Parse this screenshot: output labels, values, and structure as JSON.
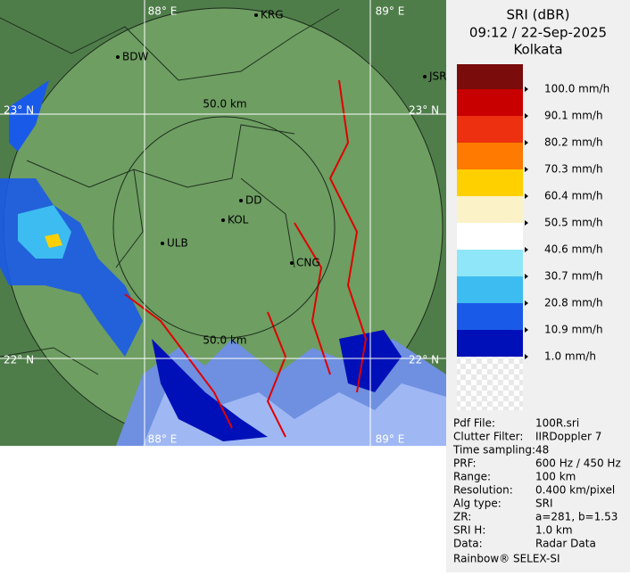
{
  "header": {
    "title": "SRI (dBR)",
    "time": "09:12 / 22-Sep-2025",
    "station": "Kolkata"
  },
  "legend": [
    {
      "label": "100.0 mm/h",
      "color": "#7a0c0c"
    },
    {
      "label": "90.1 mm/h",
      "color": "#c80000"
    },
    {
      "label": "80.2 mm/h",
      "color": "#ec3010"
    },
    {
      "label": "70.3 mm/h",
      "color": "#ff7a00"
    },
    {
      "label": "60.4 mm/h",
      "color": "#ffd000"
    },
    {
      "label": "50.5 mm/h",
      "color": "#fbf2c8"
    },
    {
      "label": "40.6 mm/h",
      "color": "#ffffff"
    },
    {
      "label": "30.7 mm/h",
      "color": "#8fe6f8"
    },
    {
      "label": "20.8 mm/h",
      "color": "#3cbcf0"
    },
    {
      "label": "10.9 mm/h",
      "color": "#1a5ae8"
    },
    {
      "label": "1.0 mm/h",
      "color": "#0010b8"
    }
  ],
  "map": {
    "grid_labels": [
      "88° E",
      "89° E",
      "23° N",
      "23° N",
      "22° N",
      "22° N",
      "88° E",
      "89° E"
    ],
    "range_labels": [
      "50.0 km",
      "50.0 km"
    ],
    "places": [
      "KRG",
      "BDW",
      "JSR",
      "DD",
      "KOL",
      "ULB",
      "CNG"
    ]
  },
  "info": [
    [
      "Pdf File:",
      "100R.sri"
    ],
    [
      "Clutter Filter:",
      "IIRDoppler 7"
    ],
    [
      "Time sampling:",
      "48"
    ],
    [
      "PRF:",
      "600 Hz / 450 Hz"
    ],
    [
      "Range:",
      "100 km"
    ],
    [
      "Resolution:",
      "0.400 km/pixel"
    ],
    [
      "Alg type:",
      "SRI"
    ],
    [
      "ZR:",
      "a=281, b=1.53"
    ],
    [
      "SRI H:",
      "1.0 km"
    ],
    [
      "Data:",
      "Radar Data"
    ]
  ],
  "footer": "Rainbow® SELEX-SI"
}
